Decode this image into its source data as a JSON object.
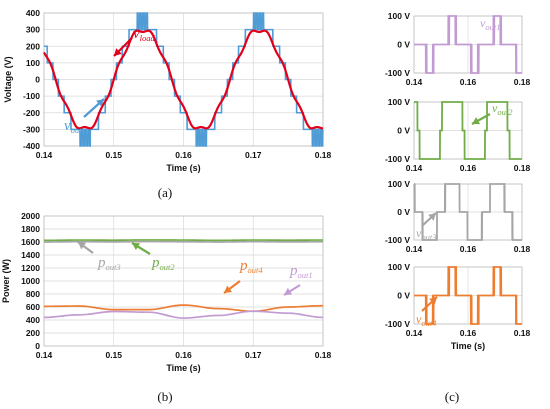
{
  "captions": {
    "a": "(a)",
    "b": "(b)",
    "c": "(c)"
  },
  "colors": {
    "out_stair": "#4f9bd5",
    "load": "#e2001a",
    "p1": "#c39bd3",
    "p2": "#70ad47",
    "p3": "#a6a6a6",
    "p4": "#ed7d31"
  },
  "chart_data": [
    {
      "id": "a",
      "type": "line",
      "xlabel": "Time (s)",
      "ylabel": "Voltage (V)",
      "xlim": [
        0.14,
        0.18
      ],
      "ylim": [
        -400,
        400
      ],
      "xticks": [
        "0.14",
        "0.15",
        "0.16",
        "0.17",
        "0.18"
      ],
      "yticks": [
        "-400",
        "-300",
        "-200",
        "-100",
        "0",
        "100",
        "200",
        "300",
        "400"
      ],
      "grid": true,
      "frequency_hz": 60,
      "step_volts": 100,
      "series": [
        {
          "key": "out",
          "color": "#4f9bd5",
          "label_main": "v",
          "label_sub": "out",
          "shape": "staircase",
          "peak": 400,
          "max_level": 3
        },
        {
          "key": "load",
          "color": "#e2001a",
          "label_main": "v",
          "label_sub": "load",
          "shape": "sine",
          "amplitude": 300
        }
      ]
    },
    {
      "id": "b",
      "type": "line",
      "xlabel": "Time (s)",
      "ylabel": "Power (W)",
      "xlim": [
        0.14,
        0.18
      ],
      "ylim": [
        0,
        2000
      ],
      "xticks": [
        "0.14",
        "0.15",
        "0.16",
        "0.17",
        "0.18"
      ],
      "yticks": [
        "0",
        "200",
        "400",
        "600",
        "800",
        "1000",
        "1200",
        "1400",
        "1600",
        "1800",
        "2000"
      ],
      "grid": true,
      "series": [
        {
          "key": "p2",
          "color": "#70ad47",
          "label_main": "p",
          "label_sub": "out2",
          "x": [
            0.14,
            0.145,
            0.15,
            0.155,
            0.16,
            0.165,
            0.17,
            0.175,
            0.18
          ],
          "values": [
            1625,
            1630,
            1628,
            1632,
            1630,
            1625,
            1630,
            1628,
            1630
          ]
        },
        {
          "key": "p3",
          "color": "#a6a6a6",
          "label_main": "p",
          "label_sub": "out3",
          "x": [
            0.14,
            0.145,
            0.15,
            0.155,
            0.16,
            0.165,
            0.17,
            0.175,
            0.18
          ],
          "values": [
            1600,
            1605,
            1602,
            1607,
            1604,
            1600,
            1605,
            1602,
            1603
          ]
        },
        {
          "key": "p4",
          "color": "#ed7d31",
          "label_main": "p",
          "label_sub": "out4",
          "x": [
            0.14,
            0.145,
            0.15,
            0.155,
            0.16,
            0.165,
            0.17,
            0.175,
            0.18
          ],
          "values": [
            610,
            615,
            560,
            560,
            630,
            575,
            535,
            600,
            620
          ]
        },
        {
          "key": "p1",
          "color": "#c39bd3",
          "label_main": "p",
          "label_sub": "out1",
          "x": [
            0.14,
            0.145,
            0.15,
            0.155,
            0.16,
            0.165,
            0.17,
            0.175,
            0.18
          ],
          "values": [
            440,
            480,
            530,
            520,
            430,
            470,
            535,
            505,
            440
          ]
        }
      ]
    },
    {
      "id": "c1",
      "type": "line",
      "xlim": [
        0.14,
        0.18
      ],
      "ylim": [
        -100,
        100
      ],
      "xticks": [
        "0.14",
        "0.16",
        "0.18"
      ],
      "yticks": [
        "-100 V",
        "0 V",
        "100 V"
      ],
      "grid": true,
      "series": [
        {
          "key": "out1",
          "color": "#c39bd3",
          "label_main": "v",
          "label_sub": "out1",
          "level": 3,
          "pulsed": true
        }
      ]
    },
    {
      "id": "c2",
      "type": "line",
      "xlim": [
        0.14,
        0.18
      ],
      "ylim": [
        -100,
        100
      ],
      "xticks": [
        "0.14",
        "0.16",
        "0.18"
      ],
      "yticks": [
        "-100 V",
        "0 V",
        "100 V"
      ],
      "grid": true,
      "series": [
        {
          "key": "out2",
          "color": "#70ad47",
          "label_main": "v",
          "label_sub": "out2",
          "level": 1,
          "pulsed": false
        }
      ]
    },
    {
      "id": "c3",
      "type": "line",
      "xlim": [
        0.14,
        0.18
      ],
      "ylim": [
        -100,
        100
      ],
      "xticks": [
        "0.14",
        "0.16",
        "0.18"
      ],
      "yticks": [
        "-100 V",
        "0 V",
        "100 V"
      ],
      "grid": true,
      "series": [
        {
          "key": "out3",
          "color": "#a6a6a6",
          "label_main": "v",
          "label_sub": "out3",
          "level": 2,
          "pulsed": true
        }
      ]
    },
    {
      "id": "c4",
      "type": "line",
      "xlabel": "Time (s)",
      "xlim": [
        0.14,
        0.18
      ],
      "ylim": [
        -100,
        100
      ],
      "xticks": [
        "0.14",
        "0.16",
        "0.18"
      ],
      "yticks": [
        "-100 V",
        "0 V",
        "100 V"
      ],
      "grid": true,
      "series": [
        {
          "key": "out4",
          "color": "#ed7d31",
          "label_main": "v",
          "label_sub": "out4",
          "level": 3,
          "pulsed": true
        }
      ]
    }
  ]
}
